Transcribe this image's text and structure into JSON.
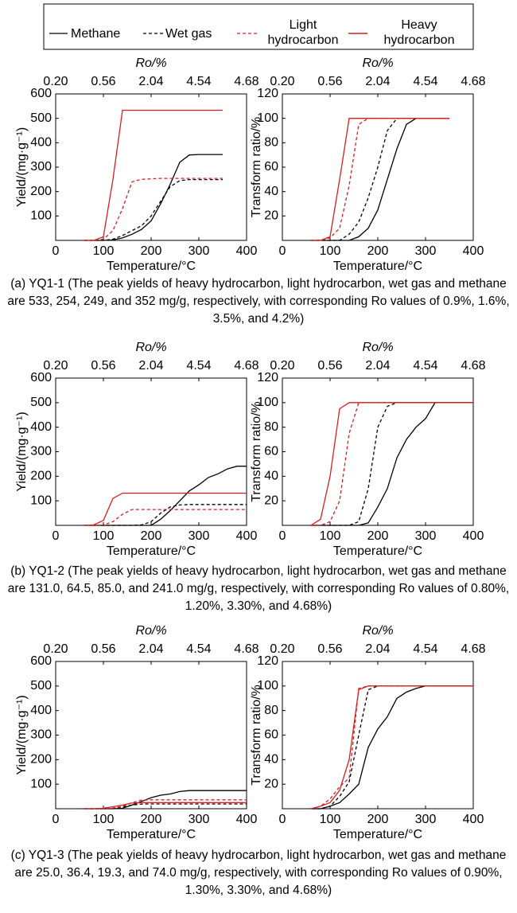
{
  "chart_data": [
    {
      "type": "line",
      "xlabel": "Temperature/°C",
      "ylabel": "Yield/(mg·g⁻¹)",
      "x2label": "Ro/%",
      "xlim": [
        0,
        400
      ],
      "xticks": [
        0,
        100,
        200,
        300,
        400
      ],
      "ylim": [
        0,
        600
      ],
      "yticks": [
        100,
        200,
        300,
        400,
        500,
        600
      ],
      "x2ticks": [
        {
          "value": 0,
          "label": "0.20"
        },
        {
          "value": 100,
          "label": "0.56"
        },
        {
          "value": 200,
          "label": "2.04"
        },
        {
          "value": 300,
          "label": "4.54"
        },
        {
          "value": 400,
          "label": "4.68"
        }
      ],
      "x": [
        60,
        80,
        100,
        120,
        140,
        160,
        180,
        200,
        220,
        240,
        260,
        280,
        300,
        320,
        340,
        350
      ],
      "series": [
        {
          "name": "Methane",
          "color": "#000000",
          "linestyle": "solid",
          "values": [
            0,
            0,
            0,
            2,
            10,
            25,
            45,
            80,
            150,
            230,
            320,
            350,
            352,
            352,
            352,
            352
          ]
        },
        {
          "name": "Wet gas",
          "color": "#000000",
          "linestyle": "dashed",
          "values": [
            0,
            0,
            0,
            5,
            20,
            40,
            60,
            100,
            160,
            220,
            245,
            249,
            249,
            249,
            249,
            249
          ]
        },
        {
          "name": "Light hydrocarbon",
          "color": "#d42020",
          "linestyle": "dashed",
          "values": [
            0,
            0,
            5,
            40,
            130,
            240,
            250,
            252,
            254,
            254,
            254,
            254,
            254,
            254,
            254,
            254
          ]
        },
        {
          "name": "Heavy hydrocarbon",
          "color": "#d42020",
          "linestyle": "solid",
          "values": [
            0,
            0,
            15,
            250,
            533,
            533,
            533,
            533,
            533,
            533,
            533,
            533,
            533,
            533,
            533,
            533
          ]
        }
      ]
    },
    {
      "type": "line",
      "xlabel": "Temperature/°C",
      "ylabel": "Transform ratio/%",
      "x2label": "Ro/%",
      "xlim": [
        0,
        400
      ],
      "xticks": [
        0,
        100,
        200,
        300,
        400
      ],
      "ylim": [
        0,
        120
      ],
      "yticks": [
        20,
        40,
        60,
        80,
        100,
        120
      ],
      "x2ticks": [
        {
          "value": 0,
          "label": "0.20"
        },
        {
          "value": 100,
          "label": "0.56"
        },
        {
          "value": 200,
          "label": "2.04"
        },
        {
          "value": 300,
          "label": "4.54"
        },
        {
          "value": 400,
          "label": "4.68"
        }
      ],
      "x": [
        60,
        80,
        100,
        120,
        140,
        160,
        180,
        200,
        220,
        240,
        260,
        280,
        300,
        320,
        340,
        350
      ],
      "series": [
        {
          "name": "Methane",
          "color": "#000000",
          "linestyle": "solid",
          "values": [
            0,
            0,
            0,
            0,
            0,
            3,
            10,
            25,
            50,
            75,
            95,
            100,
            100,
            100,
            100,
            100
          ]
        },
        {
          "name": "Wet gas",
          "color": "#000000",
          "linestyle": "dashed",
          "values": [
            0,
            0,
            0,
            0,
            5,
            15,
            35,
            60,
            90,
            100,
            100,
            100,
            100,
            100,
            100,
            100
          ]
        },
        {
          "name": "Light hydrocarbon",
          "color": "#d42020",
          "linestyle": "dashed",
          "values": [
            0,
            0,
            2,
            10,
            45,
            95,
            100,
            100,
            100,
            100,
            100,
            100,
            100,
            100,
            100,
            100
          ]
        },
        {
          "name": "Heavy hydrocarbon",
          "color": "#d42020",
          "linestyle": "solid",
          "values": [
            0,
            0,
            3,
            50,
            100,
            100,
            100,
            100,
            100,
            100,
            100,
            100,
            100,
            100,
            100,
            100
          ]
        }
      ]
    },
    {
      "type": "line",
      "xlabel": "Temperature/°C",
      "ylabel": "Yield/(mg·g⁻¹)",
      "x2label": "Ro/%",
      "xlim": [
        0,
        400
      ],
      "xticks": [
        0,
        100,
        200,
        300,
        400
      ],
      "ylim": [
        0,
        600
      ],
      "yticks": [
        100,
        200,
        300,
        400,
        500,
        600
      ],
      "x2ticks": [
        {
          "value": 0,
          "label": "0.20"
        },
        {
          "value": 100,
          "label": "0.56"
        },
        {
          "value": 200,
          "label": "2.04"
        },
        {
          "value": 300,
          "label": "4.54"
        },
        {
          "value": 400,
          "label": "4.68"
        }
      ],
      "x": [
        60,
        80,
        100,
        120,
        140,
        160,
        180,
        200,
        220,
        240,
        260,
        280,
        300,
        320,
        340,
        360,
        380,
        400
      ],
      "series": [
        {
          "name": "Methane",
          "color": "#000000",
          "linestyle": "solid",
          "values": [
            0,
            0,
            0,
            0,
            0,
            0,
            0,
            0,
            25,
            60,
            100,
            140,
            165,
            195,
            210,
            230,
            241,
            241
          ]
        },
        {
          "name": "Wet gas",
          "color": "#000000",
          "linestyle": "dashed",
          "values": [
            0,
            0,
            0,
            0,
            0,
            0,
            2,
            15,
            50,
            75,
            83,
            85,
            85,
            85,
            85,
            85,
            85,
            85
          ]
        },
        {
          "name": "Light hydrocarbon",
          "color": "#d42020",
          "linestyle": "dashed",
          "values": [
            0,
            0,
            2,
            15,
            45,
            64.5,
            64.5,
            64.5,
            64.5,
            64.5,
            64.5,
            64.5,
            64.5,
            64.5,
            64.5,
            64.5,
            64.5,
            64.5
          ]
        },
        {
          "name": "Heavy hydrocarbon",
          "color": "#d42020",
          "linestyle": "solid",
          "values": [
            0,
            2,
            20,
            110,
            131,
            131,
            131,
            131,
            131,
            131,
            131,
            131,
            131,
            131,
            131,
            131,
            131,
            131
          ]
        }
      ]
    },
    {
      "type": "line",
      "xlabel": "Temperature/°C",
      "ylabel": "Transform ratio/%",
      "x2label": "Ro/%",
      "xlim": [
        0,
        400
      ],
      "xticks": [
        0,
        100,
        200,
        300,
        400
      ],
      "ylim": [
        0,
        120
      ],
      "yticks": [
        20,
        40,
        60,
        80,
        100,
        120
      ],
      "x2ticks": [
        {
          "value": 0,
          "label": "0.20"
        },
        {
          "value": 100,
          "label": "0.56"
        },
        {
          "value": 200,
          "label": "2.04"
        },
        {
          "value": 300,
          "label": "4.54"
        },
        {
          "value": 400,
          "label": "4.68"
        }
      ],
      "x": [
        60,
        80,
        100,
        120,
        140,
        160,
        180,
        200,
        220,
        240,
        260,
        280,
        300,
        320,
        340,
        360,
        380,
        400
      ],
      "series": [
        {
          "name": "Methane",
          "color": "#000000",
          "linestyle": "solid",
          "values": [
            0,
            0,
            0,
            0,
            0,
            0,
            2,
            15,
            30,
            55,
            70,
            80,
            87,
            100,
            100,
            100,
            100,
            100
          ]
        },
        {
          "name": "Wet gas",
          "color": "#000000",
          "linestyle": "dashed",
          "values": [
            0,
            0,
            0,
            0,
            0,
            3,
            30,
            80,
            97,
            100,
            100,
            100,
            100,
            100,
            100,
            100,
            100,
            100
          ]
        },
        {
          "name": "Light hydrocarbon",
          "color": "#d42020",
          "linestyle": "dashed",
          "values": [
            0,
            0,
            3,
            20,
            75,
            100,
            100,
            100,
            100,
            100,
            100,
            100,
            100,
            100,
            100,
            100,
            100,
            100
          ]
        },
        {
          "name": "Heavy hydrocarbon",
          "color": "#d42020",
          "linestyle": "solid",
          "values": [
            0,
            5,
            40,
            95,
            100,
            100,
            100,
            100,
            100,
            100,
            100,
            100,
            100,
            100,
            100,
            100,
            100,
            100
          ]
        }
      ]
    },
    {
      "type": "line",
      "xlabel": "Temperature/°C",
      "ylabel": "Yield/(mg·g⁻¹)",
      "x2label": "Ro/%",
      "xlim": [
        0,
        400
      ],
      "xticks": [
        0,
        100,
        200,
        300,
        400
      ],
      "ylim": [
        0,
        600
      ],
      "yticks": [
        100,
        200,
        300,
        400,
        500,
        600
      ],
      "x2ticks": [
        {
          "value": 0,
          "label": "0.20"
        },
        {
          "value": 100,
          "label": "0.56"
        },
        {
          "value": 200,
          "label": "2.04"
        },
        {
          "value": 300,
          "label": "4.54"
        },
        {
          "value": 400,
          "label": "4.68"
        }
      ],
      "x": [
        60,
        80,
        100,
        120,
        140,
        160,
        180,
        200,
        220,
        240,
        260,
        280,
        300,
        320,
        340,
        360,
        380,
        400
      ],
      "series": [
        {
          "name": "Methane",
          "color": "#000000",
          "linestyle": "solid",
          "values": [
            0,
            0,
            0,
            0,
            2,
            15,
            30,
            45,
            55,
            60,
            70,
            74,
            74,
            74,
            74,
            74,
            74,
            74
          ]
        },
        {
          "name": "Wet gas",
          "color": "#000000",
          "linestyle": "dashed",
          "values": [
            0,
            0,
            0,
            2,
            8,
            15,
            19,
            19.3,
            19.3,
            19.3,
            19.3,
            19.3,
            19.3,
            19.3,
            19.3,
            19.3,
            19.3,
            19.3
          ]
        },
        {
          "name": "Light hydrocarbon",
          "color": "#d42020",
          "linestyle": "dashed",
          "values": [
            0,
            0,
            0,
            3,
            10,
            25,
            35,
            36.4,
            36.4,
            36.4,
            36.4,
            36.4,
            36.4,
            36.4,
            36.4,
            36.4,
            36.4,
            36.4
          ]
        },
        {
          "name": "Heavy hydrocarbon",
          "color": "#d42020",
          "linestyle": "solid",
          "values": [
            0,
            0,
            2,
            8,
            15,
            23,
            25,
            25,
            25,
            25,
            25,
            25,
            25,
            25,
            25,
            25,
            25,
            25
          ]
        }
      ]
    },
    {
      "type": "line",
      "xlabel": "Temperature/°C",
      "ylabel": "Transform ratio/%",
      "x2label": "Ro/%",
      "xlim": [
        0,
        400
      ],
      "xticks": [
        0,
        100,
        200,
        300,
        400
      ],
      "ylim": [
        0,
        120
      ],
      "yticks": [
        20,
        40,
        60,
        80,
        100,
        120
      ],
      "x2ticks": [
        {
          "value": 0,
          "label": "0.20"
        },
        {
          "value": 100,
          "label": "0.56"
        },
        {
          "value": 200,
          "label": "2.04"
        },
        {
          "value": 300,
          "label": "4.54"
        },
        {
          "value": 400,
          "label": "4.68"
        }
      ],
      "x": [
        60,
        80,
        100,
        120,
        140,
        160,
        180,
        200,
        220,
        240,
        260,
        280,
        300,
        320,
        340,
        360,
        380,
        400
      ],
      "series": [
        {
          "name": "Methane",
          "color": "#000000",
          "linestyle": "solid",
          "values": [
            0,
            0,
            2,
            5,
            12,
            20,
            50,
            65,
            75,
            90,
            95,
            98,
            100,
            100,
            100,
            100,
            100,
            100
          ]
        },
        {
          "name": "Wet gas",
          "color": "#000000",
          "linestyle": "dashed",
          "values": [
            0,
            0,
            2,
            10,
            22,
            60,
            97,
            100,
            100,
            100,
            100,
            100,
            100,
            100,
            100,
            100,
            100,
            100
          ]
        },
        {
          "name": "Light hydrocarbon",
          "color": "#d42020",
          "linestyle": "dashed",
          "values": [
            0,
            2,
            8,
            18,
            25,
            98,
            100,
            100,
            100,
            100,
            100,
            100,
            100,
            100,
            100,
            100,
            100,
            100
          ]
        },
        {
          "name": "Heavy hydrocarbon",
          "color": "#d42020",
          "linestyle": "solid",
          "values": [
            0,
            2,
            5,
            15,
            40,
            97,
            100,
            100,
            100,
            100,
            100,
            100,
            100,
            100,
            100,
            100,
            100,
            100
          ]
        }
      ]
    }
  ],
  "captions": [
    "(a) YQ1-1 (The peak yields of heavy hydrocarbon, light hydrocarbon, wet gas and methane are 533, 254, 249, and 352 mg/g, respectively, with corresponding Ro values of 0.9%, 1.6%, 3.5%, and 4.2%)",
    "(b) YQ1-2 (The peak yields of heavy hydrocarbon, light hydrocarbon, wet gas and methane are 131.0, 64.5, 85.0, and 241.0 mg/g, respectively, with corresponding Ro values of 0.80%, 1.20%, 3.30%, and 4.68%)",
    "(c) YQ1-3 (The peak yields of heavy hydrocarbon, light hydrocarbon, wet gas and methane are 25.0, 36.4, 19.3, and 74.0 mg/g, respectively, with corresponding Ro values of 0.90%, 1.30%, 3.30%, and 4.68%)"
  ]
}
